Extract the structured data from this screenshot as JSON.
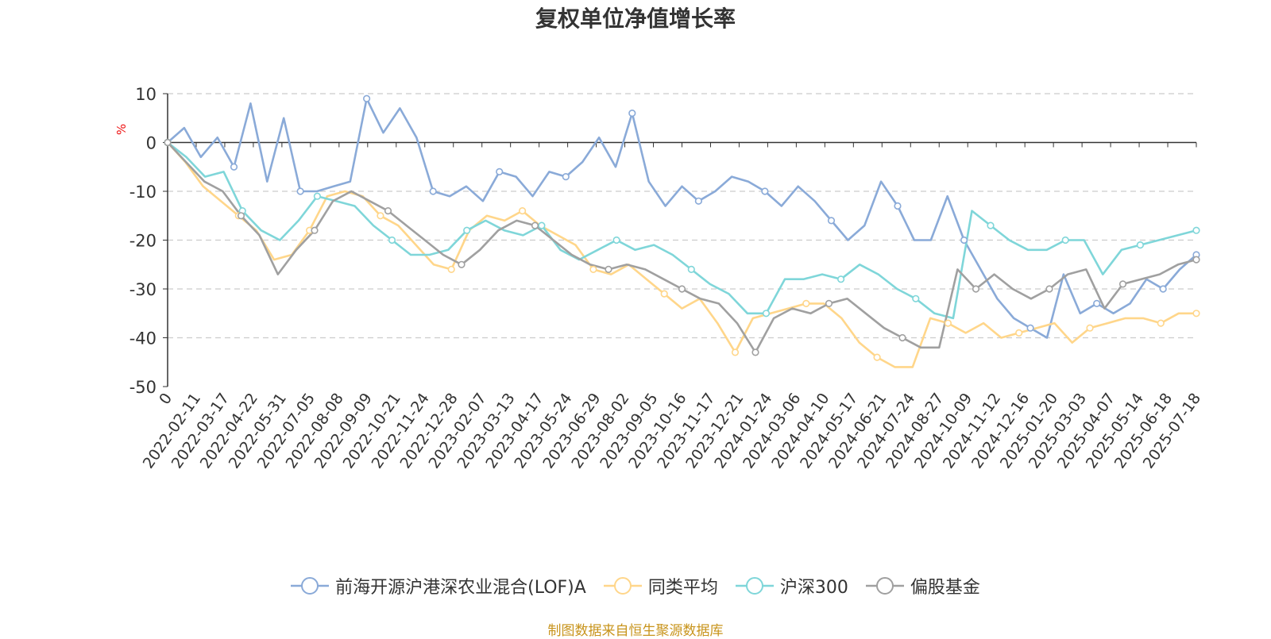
{
  "chart_data": {
    "type": "line",
    "title": "复权单位净值增长率",
    "ylabel": "%",
    "ylim": [
      -50,
      10
    ],
    "yticks": [
      10,
      0,
      -10,
      -20,
      -30,
      -40,
      -50
    ],
    "grid": true,
    "legend_position": "bottom",
    "x_tick_labels": [
      "0",
      "2022-02-11",
      "2022-03-17",
      "2022-04-22",
      "2022-05-31",
      "2022-07-05",
      "2022-08-08",
      "2022-09-09",
      "2022-10-21",
      "2022-11-24",
      "2022-12-28",
      "2023-02-07",
      "2023-03-13",
      "2023-04-17",
      "2023-05-24",
      "2023-06-29",
      "2023-08-02",
      "2023-09-05",
      "2023-10-16",
      "2023-11-17",
      "2023-12-21",
      "2024-01-24",
      "2024-03-06",
      "2024-04-10",
      "2024-05-17",
      "2024-06-21",
      "2024-07-24",
      "2024-08-27",
      "2024-10-09",
      "2024-11-12",
      "2024-12-16",
      "2025-01-20",
      "2025-03-03",
      "2025-04-07",
      "2025-05-14",
      "2025-06-18",
      "2025-07-18"
    ],
    "series": [
      {
        "name": "前海开源沪港深农业混合(LOF)A",
        "color": "#8aaad8",
        "values": [
          0,
          3,
          -3,
          1,
          -5,
          8,
          -8,
          5,
          -10,
          -10,
          -9,
          -8,
          9,
          2,
          7,
          1,
          -10,
          -11,
          -9,
          -12,
          -6,
          -7,
          -11,
          -6,
          -7,
          -4,
          1,
          -5,
          6,
          -8,
          -13,
          -9,
          -12,
          -10,
          -7,
          -8,
          -10,
          -13,
          -9,
          -12,
          -16,
          -20,
          -17,
          -8,
          -13,
          -20,
          -20,
          -11,
          -20,
          -26,
          -32,
          -36,
          -38,
          -40,
          -27,
          -35,
          -33,
          -35,
          -33,
          -28,
          -30,
          -26,
          -23
        ]
      },
      {
        "name": "同类平均",
        "color": "#ffd68a",
        "values": [
          0,
          -4,
          -9,
          -12,
          -15,
          -18,
          -24,
          -23,
          -18,
          -11,
          -10,
          -11,
          -15,
          -17,
          -21,
          -25,
          -26,
          -18,
          -15,
          -16,
          -14,
          -17,
          -19,
          -21,
          -26,
          -27,
          -25,
          -28,
          -31,
          -34,
          -32,
          -37,
          -43,
          -36,
          -35,
          -34,
          -33,
          -33,
          -36,
          -41,
          -44,
          -46,
          -46,
          -36,
          -37,
          -39,
          -37,
          -40,
          -39,
          -38,
          -37,
          -41,
          -38,
          -37,
          -36,
          -36,
          -37,
          -35,
          -35
        ]
      },
      {
        "name": "沪深300",
        "color": "#7fd6d9",
        "values": [
          0,
          -3,
          -7,
          -6,
          -14,
          -18,
          -20,
          -16,
          -11,
          -12,
          -13,
          -17,
          -20,
          -23,
          -23,
          -22,
          -18,
          -16,
          -18,
          -19,
          -17,
          -22,
          -24,
          -22,
          -20,
          -22,
          -21,
          -23,
          -26,
          -29,
          -31,
          -35,
          -35,
          -28,
          -28,
          -27,
          -28,
          -25,
          -27,
          -30,
          -32,
          -35,
          -36,
          -14,
          -17,
          -20,
          -22,
          -22,
          -20,
          -20,
          -27,
          -22,
          -21,
          -20,
          -19,
          -18
        ]
      },
      {
        "name": "偏股基金",
        "color": "#a0a0a0",
        "values": [
          0,
          -4,
          -8,
          -10,
          -15,
          -19,
          -27,
          -22,
          -18,
          -12,
          -10,
          -12,
          -14,
          -17,
          -20,
          -23,
          -25,
          -22,
          -18,
          -16,
          -17,
          -20,
          -23,
          -25,
          -26,
          -25,
          -26,
          -28,
          -30,
          -32,
          -33,
          -37,
          -43,
          -36,
          -34,
          -35,
          -33,
          -32,
          -35,
          -38,
          -40,
          -42,
          -42,
          -26,
          -30,
          -27,
          -30,
          -32,
          -30,
          -27,
          -26,
          -34,
          -29,
          -28,
          -27,
          -25,
          -24
        ]
      }
    ]
  },
  "title": "复权单位净值增长率",
  "y_unit": "%",
  "source_note": "制图数据来自恒生聚源数据库"
}
